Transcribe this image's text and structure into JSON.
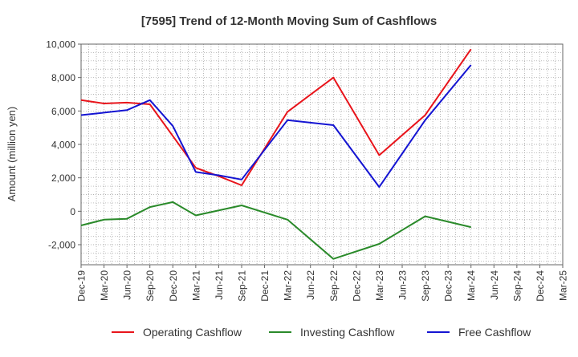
{
  "chart_data": {
    "type": "line",
    "title": "[7595]  Trend of 12-Month Moving Sum of Cashflows",
    "xlabel": "",
    "ylabel": "Amount (million yen)",
    "ylim": [
      -3200,
      10000
    ],
    "yticks": [
      -2000,
      0,
      2000,
      4000,
      6000,
      8000,
      10000
    ],
    "ytick_labels": [
      "-2,000",
      "0",
      "2,000",
      "4,000",
      "6,000",
      "8,000",
      "10,000"
    ],
    "categories": [
      "Dec-19",
      "Mar-20",
      "Jun-20",
      "Sep-20",
      "Dec-20",
      "Mar-21",
      "Jun-21",
      "Sep-21",
      "Dec-21",
      "Mar-22",
      "Jun-22",
      "Sep-22",
      "Dec-22",
      "Mar-23",
      "Jun-23",
      "Sep-23",
      "Dec-23",
      "Mar-24",
      "Jun-24",
      "Sep-24",
      "Dec-24",
      "Mar-25"
    ],
    "grid": true,
    "legend_position": "bottom",
    "series": [
      {
        "name": "Operating Cashflow",
        "color": "#e8141b",
        "values": [
          6650,
          6450,
          6500,
          6400,
          4500,
          2600,
          2100,
          1550,
          null,
          5950,
          null,
          8000,
          null,
          3350,
          null,
          5750,
          null,
          9700,
          null,
          null,
          null,
          null
        ]
      },
      {
        "name": "Investing Cashflow",
        "color": "#2a8a2a",
        "values": [
          -850,
          -500,
          -450,
          250,
          550,
          -250,
          null,
          350,
          null,
          -500,
          null,
          -2850,
          null,
          -1950,
          null,
          -300,
          null,
          -950,
          null,
          null,
          null,
          null
        ]
      },
      {
        "name": "Free Cashflow",
        "color": "#1414d2",
        "values": [
          5750,
          5900,
          6050,
          6650,
          5100,
          2350,
          2150,
          1900,
          null,
          5450,
          null,
          5150,
          null,
          1450,
          null,
          5450,
          null,
          8750,
          null,
          null,
          null,
          null
        ]
      }
    ]
  }
}
